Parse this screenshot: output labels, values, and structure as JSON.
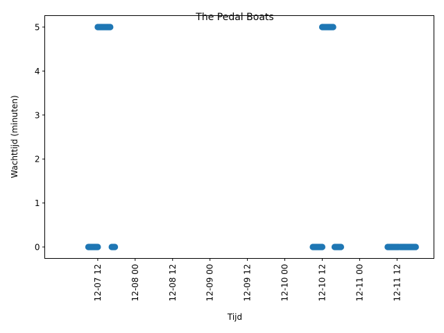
{
  "chart_data": {
    "type": "scatter",
    "title": "The Pedal Boats",
    "xlabel": "Tijd",
    "ylabel": "Wachttijd (minuten)",
    "xlim": [
      "2016-12-06T19:00",
      "2016-12-11T23:50"
    ],
    "ylim": [
      -0.26,
      5.26
    ],
    "x_ticks": [
      {
        "t": "2016-12-07T12:00",
        "label": "12-07 12"
      },
      {
        "t": "2016-12-08T00:00",
        "label": "12-08 00"
      },
      {
        "t": "2016-12-08T12:00",
        "label": "12-08 12"
      },
      {
        "t": "2016-12-09T00:00",
        "label": "12-09 00"
      },
      {
        "t": "2016-12-09T12:00",
        "label": "12-09 12"
      },
      {
        "t": "2016-12-10T00:00",
        "label": "12-10 00"
      },
      {
        "t": "2016-12-10T12:00",
        "label": "12-10 12"
      },
      {
        "t": "2016-12-11T00:00",
        "label": "12-11 00"
      },
      {
        "t": "2016-12-11T12:00",
        "label": "12-11 12"
      }
    ],
    "y_ticks": [
      {
        "v": 0,
        "label": "0"
      },
      {
        "v": 1,
        "label": "1"
      },
      {
        "v": 2,
        "label": "2"
      },
      {
        "v": 3,
        "label": "3"
      },
      {
        "v": 4,
        "label": "4"
      },
      {
        "v": 5,
        "label": "5"
      }
    ],
    "grid": false,
    "color": "#1f77b4",
    "points": [
      {
        "x": "2016-12-07T09:00",
        "y": 0
      },
      {
        "x": "2016-12-07T09:15",
        "y": 0
      },
      {
        "x": "2016-12-07T09:30",
        "y": 0
      },
      {
        "x": "2016-12-07T09:45",
        "y": 0
      },
      {
        "x": "2016-12-07T10:00",
        "y": 0
      },
      {
        "x": "2016-12-07T10:15",
        "y": 0
      },
      {
        "x": "2016-12-07T10:30",
        "y": 0
      },
      {
        "x": "2016-12-07T10:45",
        "y": 0
      },
      {
        "x": "2016-12-07T11:00",
        "y": 0
      },
      {
        "x": "2016-12-07T11:15",
        "y": 0
      },
      {
        "x": "2016-12-07T11:30",
        "y": 0
      },
      {
        "x": "2016-12-07T11:45",
        "y": 0
      },
      {
        "x": "2016-12-07T12:00",
        "y": 0
      },
      {
        "x": "2016-12-07T12:00",
        "y": 5
      },
      {
        "x": "2016-12-07T12:15",
        "y": 5
      },
      {
        "x": "2016-12-07T12:30",
        "y": 5
      },
      {
        "x": "2016-12-07T12:45",
        "y": 5
      },
      {
        "x": "2016-12-07T13:00",
        "y": 5
      },
      {
        "x": "2016-12-07T13:15",
        "y": 5
      },
      {
        "x": "2016-12-07T13:30",
        "y": 5
      },
      {
        "x": "2016-12-07T13:45",
        "y": 5
      },
      {
        "x": "2016-12-07T14:00",
        "y": 5
      },
      {
        "x": "2016-12-07T14:15",
        "y": 5
      },
      {
        "x": "2016-12-07T14:30",
        "y": 5
      },
      {
        "x": "2016-12-07T14:45",
        "y": 5
      },
      {
        "x": "2016-12-07T15:00",
        "y": 5
      },
      {
        "x": "2016-12-07T15:15",
        "y": 5
      },
      {
        "x": "2016-12-07T15:30",
        "y": 5
      },
      {
        "x": "2016-12-07T15:45",
        "y": 5
      },
      {
        "x": "2016-12-07T16:00",
        "y": 5
      },
      {
        "x": "2016-12-07T16:30",
        "y": 0
      },
      {
        "x": "2016-12-07T16:45",
        "y": 0
      },
      {
        "x": "2016-12-07T17:00",
        "y": 0
      },
      {
        "x": "2016-12-07T17:15",
        "y": 0
      },
      {
        "x": "2016-12-07T17:30",
        "y": 0
      },
      {
        "x": "2016-12-10T09:00",
        "y": 0
      },
      {
        "x": "2016-12-10T09:15",
        "y": 0
      },
      {
        "x": "2016-12-10T09:30",
        "y": 0
      },
      {
        "x": "2016-12-10T09:45",
        "y": 0
      },
      {
        "x": "2016-12-10T10:00",
        "y": 0
      },
      {
        "x": "2016-12-10T10:15",
        "y": 0
      },
      {
        "x": "2016-12-10T10:30",
        "y": 0
      },
      {
        "x": "2016-12-10T10:45",
        "y": 0
      },
      {
        "x": "2016-12-10T11:00",
        "y": 0
      },
      {
        "x": "2016-12-10T11:15",
        "y": 0
      },
      {
        "x": "2016-12-10T11:30",
        "y": 0
      },
      {
        "x": "2016-12-10T11:45",
        "y": 0
      },
      {
        "x": "2016-12-10T12:00",
        "y": 0
      },
      {
        "x": "2016-12-10T12:00",
        "y": 5
      },
      {
        "x": "2016-12-10T12:15",
        "y": 5
      },
      {
        "x": "2016-12-10T12:30",
        "y": 5
      },
      {
        "x": "2016-12-10T12:45",
        "y": 5
      },
      {
        "x": "2016-12-10T13:00",
        "y": 5
      },
      {
        "x": "2016-12-10T13:15",
        "y": 5
      },
      {
        "x": "2016-12-10T13:30",
        "y": 5
      },
      {
        "x": "2016-12-10T13:45",
        "y": 5
      },
      {
        "x": "2016-12-10T14:00",
        "y": 5
      },
      {
        "x": "2016-12-10T14:15",
        "y": 5
      },
      {
        "x": "2016-12-10T14:30",
        "y": 5
      },
      {
        "x": "2016-12-10T14:45",
        "y": 5
      },
      {
        "x": "2016-12-10T15:00",
        "y": 5
      },
      {
        "x": "2016-12-10T15:15",
        "y": 5
      },
      {
        "x": "2016-12-10T15:30",
        "y": 5
      },
      {
        "x": "2016-12-10T16:00",
        "y": 0
      },
      {
        "x": "2016-12-10T16:15",
        "y": 0
      },
      {
        "x": "2016-12-10T16:30",
        "y": 0
      },
      {
        "x": "2016-12-10T16:45",
        "y": 0
      },
      {
        "x": "2016-12-10T17:00",
        "y": 0
      },
      {
        "x": "2016-12-10T17:15",
        "y": 0
      },
      {
        "x": "2016-12-10T17:30",
        "y": 0
      },
      {
        "x": "2016-12-10T17:45",
        "y": 0
      },
      {
        "x": "2016-12-10T18:00",
        "y": 0
      },
      {
        "x": "2016-12-11T09:00",
        "y": 0
      },
      {
        "x": "2016-12-11T09:15",
        "y": 0
      },
      {
        "x": "2016-12-11T09:30",
        "y": 0
      },
      {
        "x": "2016-12-11T09:45",
        "y": 0
      },
      {
        "x": "2016-12-11T10:00",
        "y": 0
      },
      {
        "x": "2016-12-11T10:15",
        "y": 0
      },
      {
        "x": "2016-12-11T10:30",
        "y": 0
      },
      {
        "x": "2016-12-11T10:45",
        "y": 0
      },
      {
        "x": "2016-12-11T11:00",
        "y": 0
      },
      {
        "x": "2016-12-11T11:15",
        "y": 0
      },
      {
        "x": "2016-12-11T11:30",
        "y": 0
      },
      {
        "x": "2016-12-11T11:45",
        "y": 0
      },
      {
        "x": "2016-12-11T12:00",
        "y": 0
      },
      {
        "x": "2016-12-11T12:15",
        "y": 0
      },
      {
        "x": "2016-12-11T12:30",
        "y": 0
      },
      {
        "x": "2016-12-11T13:00",
        "y": 0
      },
      {
        "x": "2016-12-11T13:15",
        "y": 0
      },
      {
        "x": "2016-12-11T13:30",
        "y": 0
      },
      {
        "x": "2016-12-11T13:45",
        "y": 0
      },
      {
        "x": "2016-12-11T14:00",
        "y": 0
      },
      {
        "x": "2016-12-11T14:15",
        "y": 0
      },
      {
        "x": "2016-12-11T14:30",
        "y": 0
      },
      {
        "x": "2016-12-11T14:45",
        "y": 0
      },
      {
        "x": "2016-12-11T15:00",
        "y": 0
      },
      {
        "x": "2016-12-11T15:15",
        "y": 0
      },
      {
        "x": "2016-12-11T15:30",
        "y": 0
      },
      {
        "x": "2016-12-11T15:45",
        "y": 0
      },
      {
        "x": "2016-12-11T16:00",
        "y": 0
      },
      {
        "x": "2016-12-11T16:15",
        "y": 0
      },
      {
        "x": "2016-12-11T16:30",
        "y": 0
      },
      {
        "x": "2016-12-11T16:45",
        "y": 0
      },
      {
        "x": "2016-12-11T17:00",
        "y": 0
      },
      {
        "x": "2016-12-11T17:15",
        "y": 0
      },
      {
        "x": "2016-12-11T17:30",
        "y": 0
      },
      {
        "x": "2016-12-11T17:45",
        "y": 0
      },
      {
        "x": "2016-12-11T18:00",
        "y": 0
      }
    ]
  }
}
